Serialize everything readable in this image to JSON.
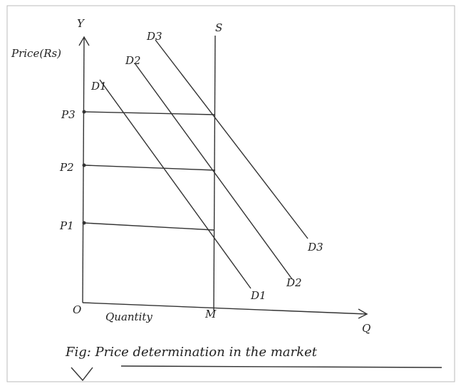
{
  "axes": {
    "y_label": "Y",
    "y_title": "Price(Rs)",
    "x_label": "Q",
    "x_title": "Quantity",
    "origin": "O",
    "quantity_point": "M"
  },
  "supply": "S",
  "demand_curves": [
    {
      "top": "D3",
      "bottom": "D3"
    },
    {
      "top": "D2",
      "bottom": "D2"
    },
    {
      "top": "D1",
      "bottom": "D1"
    }
  ],
  "prices": [
    "P3",
    "P2",
    "P1"
  ],
  "caption": "Fig: Price determination in the market"
}
